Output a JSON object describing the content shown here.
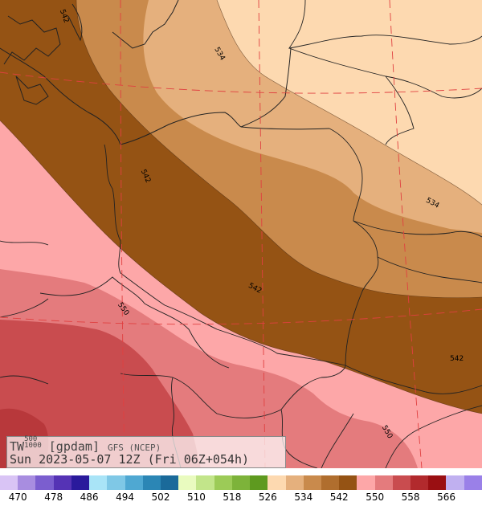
{
  "map": {
    "contour_labels": [
      "542",
      "534",
      "542",
      "534",
      "542",
      "550",
      "542",
      "550"
    ],
    "fill_colors": {
      "band_526_534": "#fdd9b0",
      "band_534_542": "#e5b07d",
      "band_542_550_light": "#c98a4c",
      "band_542_550_dark": "#955314",
      "band_550_558": "#fda7a8",
      "band_558_566": "#e47b7d",
      "band_566_plus": "#c94c4f"
    },
    "line_colors": {
      "borders": "#222222",
      "grid": "#e04040"
    }
  },
  "info": {
    "variable": "TW",
    "sup": "500",
    "sub": "1000",
    "unit": "[gpdam]",
    "model": "GFS (NCEP)",
    "datetime": "Sun 2023-05-07 12Z (Fri 06Z+054h)"
  },
  "legend": {
    "colors": [
      "#d9c4f5",
      "#a88de0",
      "#7b5ecf",
      "#5533b5",
      "#2a1a9c",
      "#a9e4f7",
      "#7fc8e6",
      "#4fa8d2",
      "#2b86b5",
      "#1a6a9a",
      "#e9fbbf",
      "#c2e58a",
      "#9ccb57",
      "#7db33a",
      "#5e9a1f",
      "#fdd9b0",
      "#e5b07d",
      "#c98a4c",
      "#b06e2e",
      "#955314",
      "#fda7a8",
      "#e47b7d",
      "#c94c4f",
      "#b22a2d",
      "#9a0f12",
      "#c0b0f0",
      "#9a80e8"
    ],
    "labels": [
      "470",
      "478",
      "486",
      "494",
      "502",
      "510",
      "518",
      "526",
      "534",
      "542",
      "550",
      "558",
      "566"
    ]
  }
}
